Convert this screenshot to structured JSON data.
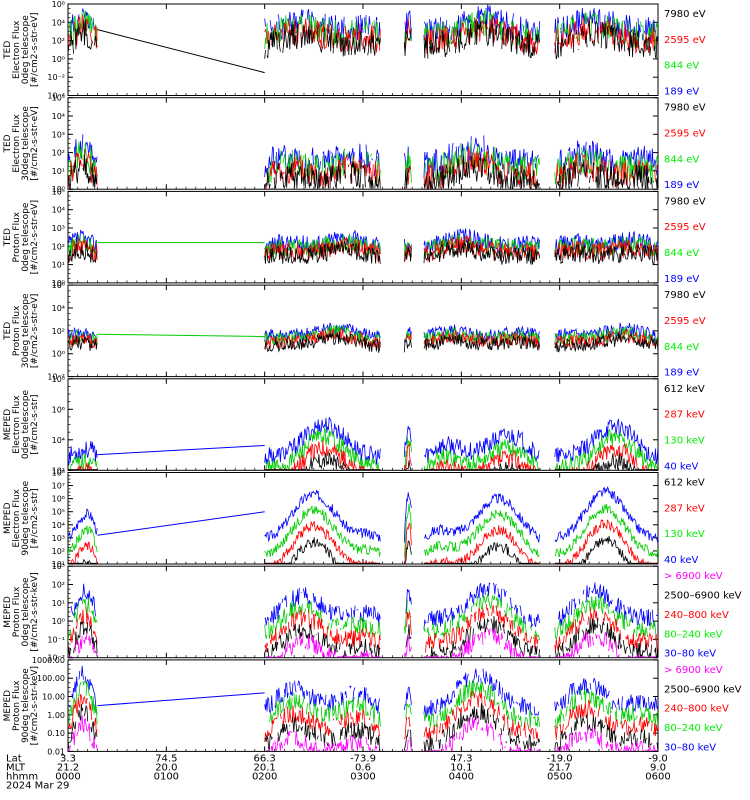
{
  "colors": {
    "c0": "#0000ff",
    "c1": "#00cc00",
    "c2": "#ff0000",
    "c3": "#000000",
    "c4": "#ff00ff",
    "c1_legend": "#00ee00"
  },
  "chart_data": [
    {
      "type": "line",
      "ylabel": [
        "TED",
        "Electron Flux",
        "0deg telescope",
        "[#/cm2-s-str-eV]"
      ],
      "ytick_labels": [
        "10⁻⁴",
        "10⁻²",
        "10⁰",
        "10²",
        "10⁴",
        "10⁶"
      ],
      "ylim_exp": [
        -4,
        6
      ],
      "legend": [
        {
          "label": "7980 eV",
          "color": "c3"
        },
        {
          "label": "2595 eV",
          "color": "c2"
        },
        {
          "label": "844 eV",
          "color": "c1"
        },
        {
          "label": "189 eV",
          "color": "c0"
        }
      ],
      "seed": 11,
      "base": 3.0,
      "amp": 1.5,
      "noise": 1.5,
      "gap": -1.5,
      "gap_color": "c3",
      "dropout": true
    },
    {
      "type": "line",
      "ylabel": [
        "TED",
        "Electron Flux",
        "30deg telescope",
        "[#/cm2-s-str-eV]"
      ],
      "ytick_labels": [
        "10⁰",
        "10¹",
        "10²",
        "10³",
        "10⁴",
        "10⁵"
      ],
      "ylim_exp": [
        0,
        5
      ],
      "legend": [
        {
          "label": "7980 eV",
          "color": "c3"
        },
        {
          "label": "2595 eV",
          "color": "c2"
        },
        {
          "label": "844 eV",
          "color": "c1"
        },
        {
          "label": "189 eV",
          "color": "c0"
        }
      ],
      "seed": 23,
      "base": 1.3,
      "amp": 1.0,
      "noise": 0.8,
      "gap": null,
      "dropout": true
    },
    {
      "type": "line",
      "ylabel": [
        "TED",
        "Proton Flux",
        "0deg telescope",
        "[#/cm2-s-str-eV]"
      ],
      "ytick_labels": [
        "10⁰",
        "10¹",
        "10²",
        "10³",
        "10⁴",
        "10⁵"
      ],
      "ylim_exp": [
        0,
        5
      ],
      "legend": [
        {
          "label": "7980 eV",
          "color": "c3"
        },
        {
          "label": "2595 eV",
          "color": "c2"
        },
        {
          "label": "844 eV",
          "color": "c1"
        },
        {
          "label": "189 eV",
          "color": "c0"
        }
      ],
      "seed": 37,
      "base": 2.0,
      "amp": 0.6,
      "noise": 0.5,
      "gap": 2.2,
      "gap_color": "c1",
      "dropout": false
    },
    {
      "type": "line",
      "ylabel": [
        "TED",
        "Proton Flux",
        "30deg telescope",
        "[#/cm2-s-str-eV]"
      ],
      "ytick_labels": [
        "10⁻²",
        "10⁰",
        "10²",
        "10⁴",
        "10⁶"
      ],
      "ylim_exp": [
        -2,
        6
      ],
      "legend": [
        {
          "label": "7980 eV",
          "color": "c3"
        },
        {
          "label": "2595 eV",
          "color": "c2"
        },
        {
          "label": "844 eV",
          "color": "c1"
        },
        {
          "label": "189 eV",
          "color": "c0"
        }
      ],
      "seed": 41,
      "base": 1.5,
      "amp": 0.8,
      "noise": 0.6,
      "gap": 1.5,
      "gap_color": "c1",
      "dropout": false
    },
    {
      "type": "line",
      "ylabel": [
        "MEPED",
        "Electron Flux",
        "0deg telescope",
        "[#/cm2-s-str]"
      ],
      "ytick_labels": [
        "10²",
        "10⁴",
        "10⁶",
        "10⁸"
      ],
      "ylim_exp": [
        1,
        8
      ],
      "legend": [
        {
          "label": "612 keV",
          "color": "c3"
        },
        {
          "label": "287 keV",
          "color": "c2"
        },
        {
          "label": "130 keV",
          "color": "c1"
        },
        {
          "label": "40 keV",
          "color": "c0"
        }
      ],
      "seed": 53,
      "base": 2.0,
      "amp": 2.5,
      "noise": 0.7,
      "gap": 2.9,
      "gap_color": "c0",
      "dropout": false
    },
    {
      "type": "line",
      "ylabel": [
        "MEPED",
        "Electron Flux",
        "90deg telescope",
        "[#/cm2-s-str]"
      ],
      "ytick_labels": [
        "10¹",
        "10²",
        "10³",
        "10⁴",
        "10⁵",
        "10⁶",
        "10⁷",
        "10⁸"
      ],
      "ylim_exp": [
        1,
        8
      ],
      "legend": [
        {
          "label": "612 keV",
          "color": "c3"
        },
        {
          "label": "287 keV",
          "color": "c2"
        },
        {
          "label": "130 keV",
          "color": "c1"
        },
        {
          "label": "40 keV",
          "color": "c0"
        }
      ],
      "seed": 67,
      "base": 3.0,
      "amp": 3.5,
      "noise": 0.4,
      "gap": 5.0,
      "gap_color": "c0",
      "dropout": false
    },
    {
      "type": "line",
      "ylabel": [
        "MEPED",
        "Proton Flux",
        "0deg telescope",
        "[#/cm2-s-str-keV]"
      ],
      "ytick_labels": [
        "10⁻²",
        "10⁻¹",
        "10⁰",
        "10¹",
        "10²",
        "10³"
      ],
      "ylim_exp": [
        -2,
        3
      ],
      "legend": [
        {
          "label": "> 6900 keV",
          "color": "c4"
        },
        {
          "label": "2500–6900 keV",
          "color": "c3"
        },
        {
          "label": "240–800 keV",
          "color": "c2"
        },
        {
          "label": "80–240 keV",
          "color": "c1"
        },
        {
          "label": "30–80 keV",
          "color": "c0"
        }
      ],
      "seed": 71,
      "base": 0.0,
      "amp": 1.8,
      "noise": 0.5,
      "gap": null,
      "dropout": true
    },
    {
      "type": "line",
      "ylabel": [
        "MEPED",
        "Proton Flux",
        "90deg telescope",
        "[#/cm2-s-str-keV]"
      ],
      "ytick_labels": [
        "0.01",
        "0.10",
        "1.00",
        "10.00",
        "100.00",
        "1000.00"
      ],
      "ylim_exp": [
        -2,
        3
      ],
      "legend": [
        {
          "label": "> 6900 keV",
          "color": "c4"
        },
        {
          "label": "2500–6900 keV",
          "color": "c3"
        },
        {
          "label": "240–800 keV",
          "color": "c2"
        },
        {
          "label": "80–240 keV",
          "color": "c1"
        },
        {
          "label": "30–80 keV",
          "color": "c0"
        }
      ],
      "seed": 83,
      "base": 0.3,
      "amp": 1.9,
      "noise": 0.5,
      "gap": 1.2,
      "gap_color": "c0",
      "dropout": true
    }
  ],
  "xaxis": {
    "row_labels": [
      "Lat",
      "MLT",
      "hhmm",
      "2024 Mar 29"
    ],
    "ticks": [
      {
        "t": 0.0,
        "lat": "3.3",
        "mlt": "21.2",
        "hhmm": "0000"
      },
      {
        "t": 100,
        "lat": "74.5",
        "mlt": "20.0",
        "hhmm": "0100"
      },
      {
        "t": 200,
        "lat": "66.3",
        "mlt": "20.1",
        "hhmm": "0200"
      },
      {
        "t": 300,
        "lat": "-73.9",
        "mlt": "0.6",
        "hhmm": "0300"
      },
      {
        "t": 400,
        "lat": "47.3",
        "mlt": "10.1",
        "hhmm": "0400"
      },
      {
        "t": 500,
        "lat": "-19.0",
        "mlt": "21.7",
        "hhmm": "0500"
      },
      {
        "t": 600,
        "lat": "-9.0",
        "mlt": "9.0",
        "hhmm": "0600"
      }
    ]
  }
}
